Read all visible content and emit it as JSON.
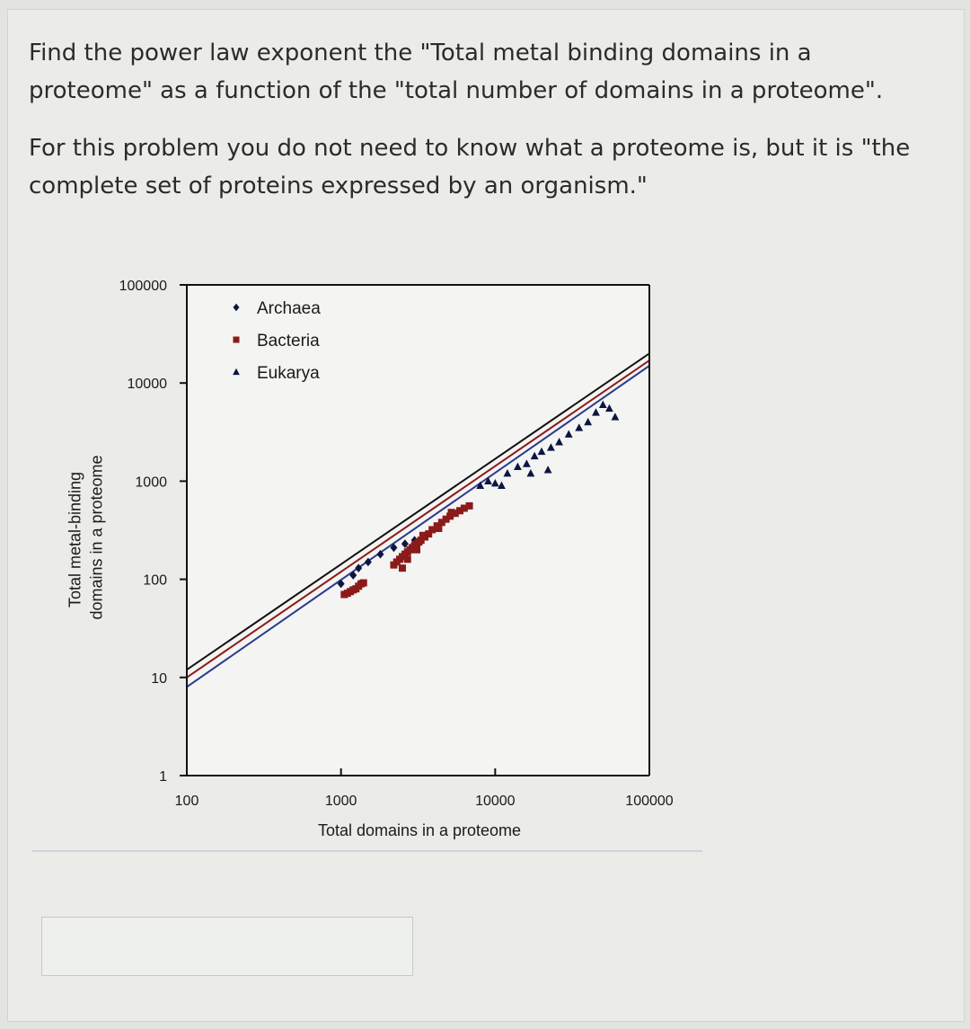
{
  "question": {
    "paragraph1": "Find the power law exponent the \"Total metal binding domains in a proteome\" as a function of the \"total number of domains in a proteome\".",
    "paragraph2": "For this problem you do not need to know what a proteome is, but it is \"the complete set of proteins expressed by an organism.\""
  },
  "answer": {
    "value": "",
    "placeholder": ""
  },
  "chart_data": {
    "type": "scatter",
    "title": "",
    "xlabel": "Total domains in a proteome",
    "ylabel": "Total metal-binding domains in a proteome",
    "xscale": "log",
    "yscale": "log",
    "xlim": [
      100,
      100000
    ],
    "ylim": [
      1,
      100000
    ],
    "x_ticks": [
      100,
      1000,
      10000,
      100000
    ],
    "x_tick_labels": [
      "100",
      "1000",
      "10000",
      "100000"
    ],
    "y_ticks": [
      1,
      10,
      100,
      1000,
      10000,
      100000
    ],
    "y_tick_labels": [
      "1",
      "10",
      "100",
      "1000",
      "10000",
      "100000"
    ],
    "grid": false,
    "legend": "top-left",
    "series": [
      {
        "name": "Archaea",
        "color": "#0d1540",
        "marker": "diamond",
        "points": [
          [
            1000,
            90
          ],
          [
            1200,
            110
          ],
          [
            1500,
            150
          ],
          [
            1800,
            180
          ],
          [
            2200,
            210
          ],
          [
            2600,
            230
          ],
          [
            3000,
            250
          ],
          [
            1300,
            130
          ]
        ]
      },
      {
        "name": "Bacteria",
        "color": "#8b1a1a",
        "marker": "square",
        "points": [
          [
            1050,
            70
          ],
          [
            1100,
            72
          ],
          [
            1150,
            75
          ],
          [
            1200,
            78
          ],
          [
            1250,
            80
          ],
          [
            1300,
            85
          ],
          [
            1350,
            90
          ],
          [
            1400,
            92
          ],
          [
            2200,
            140
          ],
          [
            2300,
            150
          ],
          [
            2400,
            160
          ],
          [
            2500,
            170
          ],
          [
            2600,
            180
          ],
          [
            2700,
            190
          ],
          [
            2800,
            200
          ],
          [
            2900,
            210
          ],
          [
            3000,
            220
          ],
          [
            3100,
            230
          ],
          [
            3200,
            240
          ],
          [
            3300,
            250
          ],
          [
            3500,
            270
          ],
          [
            3700,
            290
          ],
          [
            3900,
            320
          ],
          [
            4200,
            350
          ],
          [
            4500,
            380
          ],
          [
            4800,
            410
          ],
          [
            5100,
            440
          ],
          [
            5500,
            470
          ],
          [
            5900,
            500
          ],
          [
            6300,
            530
          ],
          [
            6800,
            560
          ],
          [
            2500,
            130
          ],
          [
            2700,
            160
          ],
          [
            3100,
            200
          ],
          [
            3400,
            280
          ],
          [
            4300,
            330
          ],
          [
            5200,
            480
          ]
        ]
      },
      {
        "name": "Eukarya",
        "color": "#0d1540",
        "marker": "triangle",
        "points": [
          [
            8000,
            900
          ],
          [
            9000,
            1000
          ],
          [
            10000,
            950
          ],
          [
            11000,
            900
          ],
          [
            12000,
            1200
          ],
          [
            14000,
            1400
          ],
          [
            16000,
            1500
          ],
          [
            18000,
            1800
          ],
          [
            20000,
            2000
          ],
          [
            23000,
            2200
          ],
          [
            26000,
            2500
          ],
          [
            30000,
            3000
          ],
          [
            35000,
            3500
          ],
          [
            40000,
            4000
          ],
          [
            45000,
            5000
          ],
          [
            50000,
            6000
          ],
          [
            55000,
            5500
          ],
          [
            60000,
            4500
          ],
          [
            17000,
            1200
          ],
          [
            22000,
            1300
          ]
        ]
      }
    ],
    "fit_lines": [
      {
        "color": "#111111",
        "points": [
          [
            100,
            12
          ],
          [
            100000,
            20000
          ]
        ]
      },
      {
        "color": "#8b1a1a",
        "points": [
          [
            100,
            10
          ],
          [
            100000,
            17000
          ]
        ]
      },
      {
        "color": "#2b3a8c",
        "points": [
          [
            100,
            8
          ],
          [
            100000,
            15000
          ]
        ]
      }
    ]
  }
}
